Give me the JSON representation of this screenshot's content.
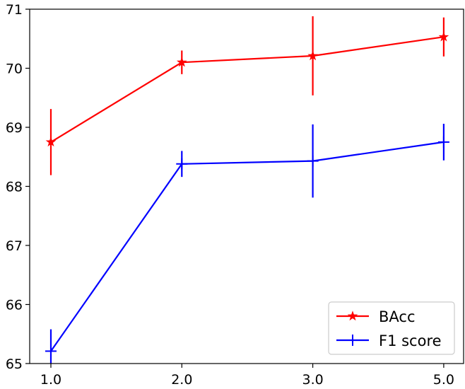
{
  "chart_data": {
    "type": "line",
    "title": "",
    "xlabel": "",
    "ylabel": "",
    "categories": [
      "1.0",
      "2.0",
      "3.0",
      "5.0"
    ],
    "ylim": [
      65,
      71
    ],
    "yticks": [
      65,
      66,
      67,
      68,
      69,
      70,
      71
    ],
    "grid": false,
    "legend_position": "bottom-right",
    "series": [
      {
        "name": "BAcc",
        "color": "#ff0000",
        "marker": "star",
        "values": [
          68.75,
          70.1,
          70.21,
          70.53
        ],
        "err": [
          0.56,
          0.2,
          0.67,
          0.33
        ]
      },
      {
        "name": "F1 score",
        "color": "#0000ff",
        "marker": "plus",
        "values": [
          65.21,
          68.38,
          68.43,
          68.75
        ],
        "err": [
          0.37,
          0.22,
          0.62,
          0.31
        ]
      }
    ]
  }
}
